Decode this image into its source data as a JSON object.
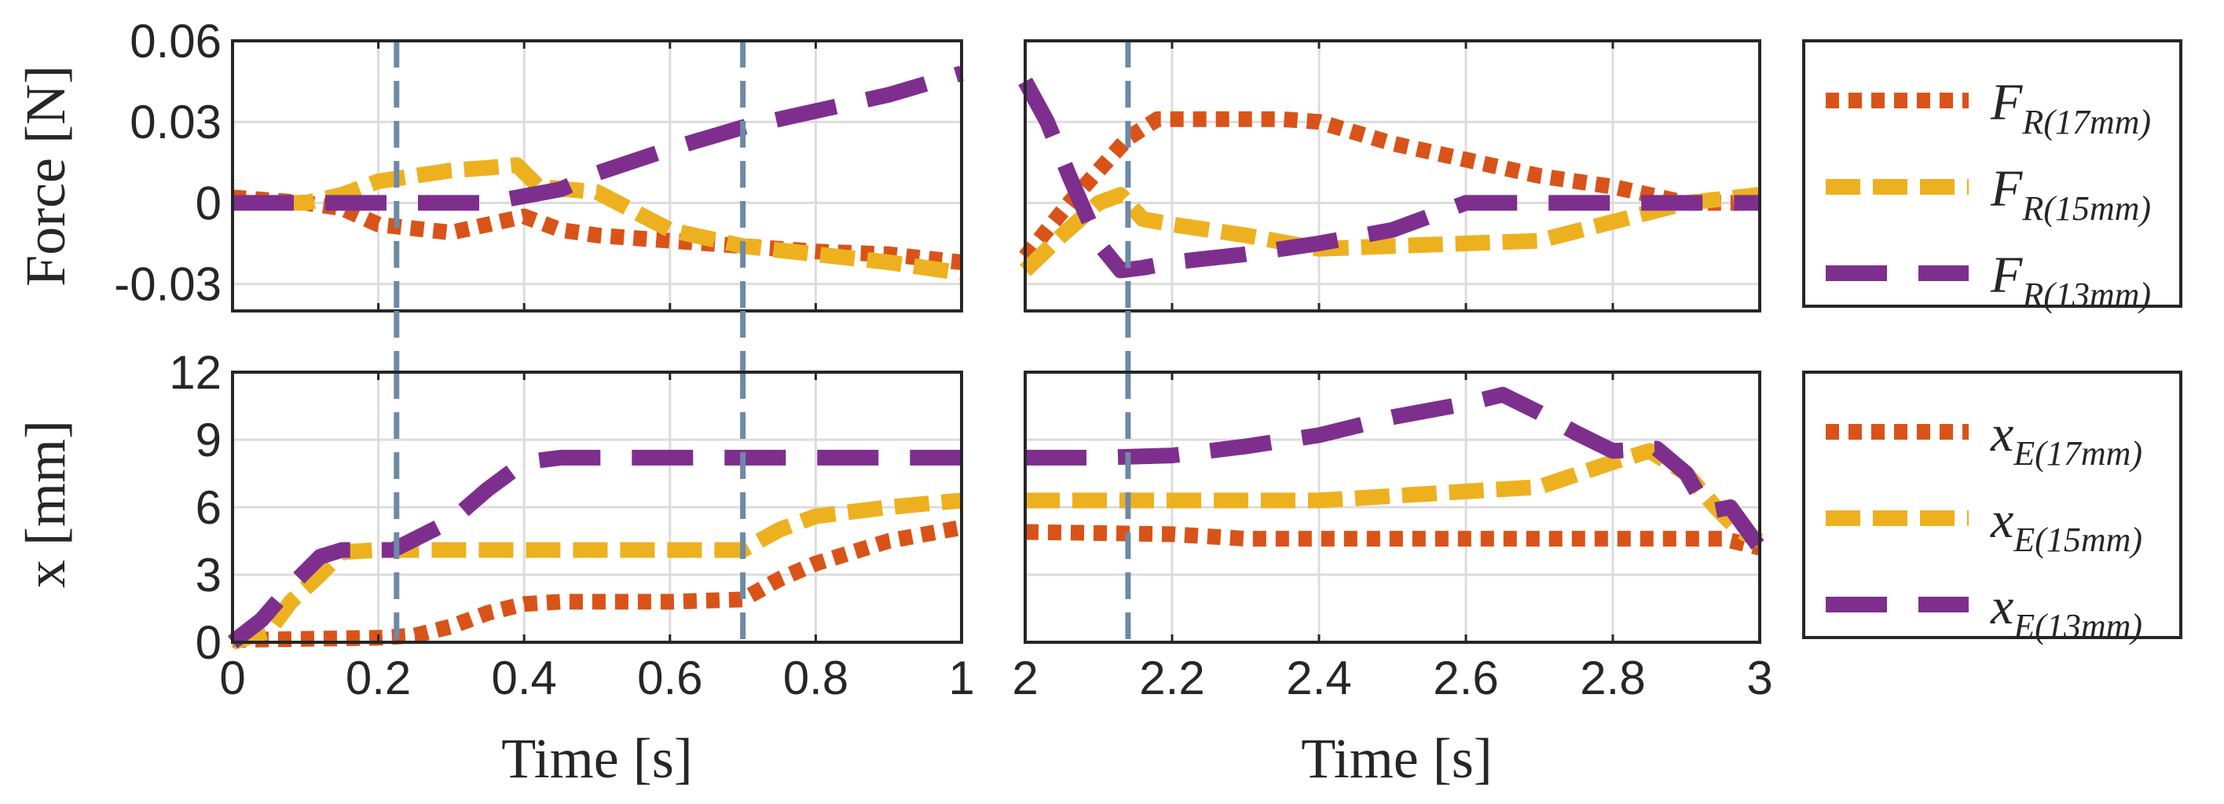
{
  "chart_data": [
    {
      "type": "line",
      "panel": "force-left",
      "ylabel": "Force [N]",
      "xlabel": "",
      "xlim": [
        0,
        1
      ],
      "ylim": [
        -0.04,
        0.06
      ],
      "xticks": [
        "0",
        "0.2",
        "0.4",
        "0.6",
        "0.8",
        "1"
      ],
      "yticks": [
        {
          "v": 0.06,
          "t": "0.06"
        },
        {
          "v": 0.03,
          "t": "0.03"
        },
        {
          "v": 0,
          "t": "0"
        },
        {
          "v": -0.03,
          "t": "-0.03"
        }
      ],
      "xtick_values": [
        0,
        0.2,
        0.4,
        0.6,
        0.8,
        1
      ],
      "vlines": [
        0.225,
        0.7
      ],
      "series": [
        {
          "name": "F_R(17mm)",
          "color": "#D95319",
          "dash": "dotted",
          "x": [
            0,
            0.1,
            0.15,
            0.2,
            0.3,
            0.4,
            0.45,
            0.5,
            0.6,
            0.7,
            0.8,
            0.9,
            1.0
          ],
          "y": [
            0.002,
            0.0,
            -0.002,
            -0.008,
            -0.011,
            -0.005,
            -0.01,
            -0.012,
            -0.014,
            -0.016,
            -0.018,
            -0.019,
            -0.022
          ]
        },
        {
          "name": "F_R(15mm)",
          "color": "#EDB120",
          "dash": "dashed",
          "x": [
            0,
            0.1,
            0.15,
            0.2,
            0.25,
            0.3,
            0.35,
            0.39,
            0.42,
            0.5,
            0.6,
            0.7,
            0.8,
            0.9,
            1.0
          ],
          "y": [
            0.0,
            0.0,
            0.003,
            0.008,
            0.01,
            0.012,
            0.013,
            0.014,
            0.006,
            0.004,
            -0.01,
            -0.016,
            -0.019,
            -0.022,
            -0.026
          ]
        },
        {
          "name": "F_R(13mm)",
          "color": "#7E2F8E",
          "dash": "longdash",
          "x": [
            0,
            0.2,
            0.35,
            0.45,
            0.5,
            0.6,
            0.7,
            0.8,
            0.9,
            1.0
          ],
          "y": [
            0,
            0,
            0.0,
            0.005,
            0.011,
            0.02,
            0.028,
            0.034,
            0.04,
            0.048
          ]
        }
      ]
    },
    {
      "type": "line",
      "panel": "force-right",
      "xlim": [
        2,
        3
      ],
      "ylim": [
        -0.04,
        0.06
      ],
      "xticks": [
        "2",
        "2.2",
        "2.4",
        "2.6",
        "2.8",
        "3"
      ],
      "xtick_values": [
        2,
        2.2,
        2.4,
        2.6,
        2.8,
        3
      ],
      "vlines": [
        2.14
      ],
      "series": [
        {
          "name": "F_R(17mm)",
          "color": "#D95319",
          "dash": "dotted",
          "x": [
            2.0,
            2.03,
            2.06,
            2.1,
            2.14,
            2.18,
            2.25,
            2.35,
            2.4,
            2.5,
            2.6,
            2.7,
            2.8,
            2.9,
            3.0
          ],
          "y": [
            -0.02,
            -0.01,
            0.0,
            0.012,
            0.024,
            0.031,
            0.031,
            0.031,
            0.03,
            0.022,
            0.016,
            0.01,
            0.006,
            0.0,
            0.0
          ]
        },
        {
          "name": "F_R(15mm)",
          "color": "#EDB120",
          "dash": "dashed",
          "x": [
            2.0,
            2.05,
            2.1,
            2.13,
            2.16,
            2.2,
            2.3,
            2.4,
            2.5,
            2.6,
            2.7,
            2.8,
            2.9,
            3.0
          ],
          "y": [
            -0.025,
            -0.012,
            0.0,
            0.003,
            -0.006,
            -0.008,
            -0.012,
            -0.017,
            -0.016,
            -0.015,
            -0.014,
            -0.007,
            0.0,
            0.003
          ]
        },
        {
          "name": "F_R(13mm)",
          "color": "#7E2F8E",
          "dash": "longdash",
          "x": [
            2.0,
            2.03,
            2.06,
            2.1,
            2.13,
            2.16,
            2.2,
            2.3,
            2.4,
            2.5,
            2.6,
            2.8,
            3.0
          ],
          "y": [
            0.045,
            0.03,
            0.01,
            -0.015,
            -0.025,
            -0.024,
            -0.022,
            -0.019,
            -0.015,
            -0.01,
            0.0,
            0.0,
            0.0
          ]
        }
      ]
    },
    {
      "type": "line",
      "panel": "position-left",
      "ylabel": "x [mm]",
      "xlabel": "Time [s]",
      "xlim": [
        0,
        1
      ],
      "ylim": [
        0,
        12
      ],
      "xticks": [
        "0",
        "0.2",
        "0.4",
        "0.6",
        "0.8",
        "1"
      ],
      "yticks": [
        {
          "v": 12,
          "t": "12"
        },
        {
          "v": 9,
          "t": "9"
        },
        {
          "v": 6,
          "t": "6"
        },
        {
          "v": 3,
          "t": "3"
        },
        {
          "v": 0,
          "t": "0"
        }
      ],
      "xtick_values": [
        0,
        0.2,
        0.4,
        0.6,
        0.8,
        1
      ],
      "vlines": [
        0.225,
        0.7
      ],
      "series": [
        {
          "name": "x_E(17mm)",
          "color": "#D95319",
          "dash": "dotted",
          "x": [
            0,
            0.2,
            0.25,
            0.3,
            0.35,
            0.4,
            0.45,
            0.6,
            0.7,
            0.75,
            0.8,
            0.9,
            1.0
          ],
          "y": [
            0.1,
            0.2,
            0.3,
            0.7,
            1.3,
            1.7,
            1.8,
            1.8,
            1.9,
            2.8,
            3.5,
            4.5,
            5.1
          ]
        },
        {
          "name": "x_E(15mm)",
          "color": "#EDB120",
          "dash": "dashed",
          "x": [
            0,
            0.05,
            0.08,
            0.12,
            0.15,
            0.2,
            0.4,
            0.6,
            0.7,
            0.75,
            0.8,
            0.9,
            1.0
          ],
          "y": [
            0,
            0.5,
            1.8,
            3.0,
            4.0,
            4.1,
            4.1,
            4.1,
            4.1,
            5.0,
            5.6,
            6.0,
            6.3
          ]
        },
        {
          "name": "x_E(13mm)",
          "color": "#7E2F8E",
          "dash": "longdash",
          "x": [
            0,
            0.04,
            0.08,
            0.12,
            0.15,
            0.22,
            0.3,
            0.35,
            0.4,
            0.45,
            1.0
          ],
          "y": [
            0,
            1.0,
            2.5,
            3.8,
            4.1,
            4.1,
            5.4,
            6.8,
            8.0,
            8.2,
            8.2
          ]
        }
      ]
    },
    {
      "type": "line",
      "panel": "position-right",
      "xlabel": "Time [s]",
      "xlim": [
        2,
        3
      ],
      "ylim": [
        0,
        12
      ],
      "xticks": [
        "2",
        "2.2",
        "2.4",
        "2.6",
        "2.8",
        "3"
      ],
      "xtick_values": [
        2,
        2.2,
        2.4,
        2.6,
        2.8,
        3
      ],
      "vlines": [
        2.14
      ],
      "series": [
        {
          "name": "x_E(17mm)",
          "color": "#D95319",
          "dash": "dotted",
          "x": [
            2.0,
            2.2,
            2.3,
            2.5,
            2.7,
            2.9,
            2.95,
            3.0
          ],
          "y": [
            4.9,
            4.8,
            4.6,
            4.6,
            4.6,
            4.6,
            4.6,
            4.2
          ]
        },
        {
          "name": "x_E(15mm)",
          "color": "#EDB120",
          "dash": "dashed",
          "x": [
            2.0,
            2.2,
            2.4,
            2.5,
            2.6,
            2.7,
            2.8,
            2.85,
            2.9,
            2.94,
            2.97,
            3.0
          ],
          "y": [
            6.3,
            6.3,
            6.3,
            6.5,
            6.7,
            6.9,
            8.0,
            8.5,
            7.5,
            6.0,
            5.0,
            4.5
          ]
        },
        {
          "name": "x_E(13mm)",
          "color": "#7E2F8E",
          "dash": "longdash",
          "x": [
            2.0,
            2.1,
            2.2,
            2.3,
            2.4,
            2.5,
            2.6,
            2.65,
            2.7,
            2.75,
            2.8,
            2.86,
            2.9,
            2.93,
            2.96,
            3.0
          ],
          "y": [
            8.2,
            8.2,
            8.3,
            8.7,
            9.2,
            10.0,
            10.6,
            11.0,
            10.2,
            9.3,
            8.5,
            8.6,
            7.5,
            5.8,
            6.0,
            4.2
          ]
        }
      ]
    }
  ],
  "legends": {
    "force": [
      {
        "main": "F",
        "sub": "R(17mm)",
        "color": "#D95319",
        "dash": "dotted"
      },
      {
        "main": "F",
        "sub": "R(15mm)",
        "color": "#EDB120",
        "dash": "dashed"
      },
      {
        "main": "F",
        "sub": "R(13mm)",
        "color": "#7E2F8E",
        "dash": "longdash"
      }
    ],
    "position": [
      {
        "main": "x",
        "sub": "E(17mm)",
        "color": "#D95319",
        "dash": "dotted"
      },
      {
        "main": "x",
        "sub": "E(15mm)",
        "color": "#EDB120",
        "dash": "dashed"
      },
      {
        "main": "x",
        "sub": "E(13mm)",
        "color": "#7E2F8E",
        "dash": "longdash"
      }
    ]
  }
}
